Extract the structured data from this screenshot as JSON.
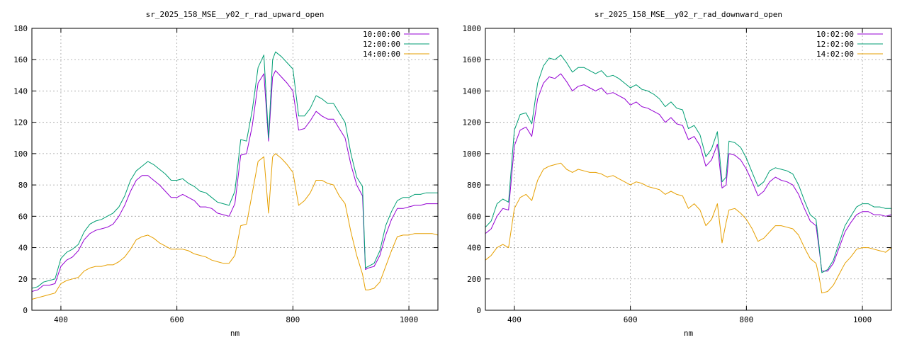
{
  "chart_data": [
    {
      "type": "line",
      "title": "sr_2025_158_MSE__y02_r_rad_upward_open",
      "xlabel": "nm",
      "ylabel": "",
      "xlim": [
        350,
        1050
      ],
      "ylim": [
        0,
        180
      ],
      "xticks": [
        400,
        600,
        800,
        1000
      ],
      "yticks": [
        0,
        20,
        40,
        60,
        80,
        100,
        120,
        140,
        160,
        180
      ],
      "grid": true,
      "legend_position": "top-right",
      "x": [
        350,
        360,
        370,
        380,
        390,
        400,
        410,
        420,
        430,
        440,
        450,
        460,
        470,
        480,
        490,
        500,
        510,
        520,
        530,
        540,
        550,
        560,
        570,
        580,
        590,
        600,
        610,
        620,
        630,
        640,
        650,
        660,
        670,
        680,
        690,
        700,
        710,
        720,
        730,
        740,
        750,
        758,
        765,
        770,
        780,
        790,
        800,
        810,
        820,
        830,
        840,
        850,
        860,
        870,
        880,
        890,
        900,
        910,
        920,
        925,
        930,
        940,
        950,
        960,
        970,
        980,
        990,
        1000,
        1010,
        1020,
        1030,
        1040,
        1050
      ],
      "series": [
        {
          "name": "10:00:00",
          "color": "#9400d3",
          "values": [
            12,
            13,
            16,
            16,
            17,
            28,
            32,
            34,
            38,
            45,
            49,
            51,
            52,
            53,
            55,
            60,
            67,
            76,
            83,
            86,
            86,
            83,
            80,
            76,
            72,
            72,
            74,
            72,
            70,
            66,
            66,
            65,
            62,
            61,
            60,
            68,
            99,
            100,
            118,
            145,
            151,
            108,
            149,
            153,
            149,
            145,
            140,
            115,
            116,
            121,
            127,
            124,
            122,
            122,
            116,
            110,
            93,
            80,
            73,
            26,
            27,
            28,
            35,
            48,
            58,
            65,
            65,
            66,
            67,
            67,
            68,
            68,
            68
          ]
        },
        {
          "name": "12:00:00",
          "color": "#009e73",
          "values": [
            14,
            15,
            18,
            19,
            20,
            33,
            37,
            39,
            42,
            50,
            55,
            57,
            58,
            60,
            62,
            66,
            73,
            83,
            89,
            92,
            95,
            93,
            90,
            87,
            83,
            83,
            84,
            81,
            79,
            76,
            75,
            72,
            69,
            68,
            67,
            76,
            109,
            108,
            128,
            155,
            163,
            110,
            160,
            165,
            162,
            158,
            154,
            124,
            124,
            129,
            137,
            135,
            132,
            132,
            126,
            120,
            100,
            85,
            79,
            27,
            28,
            30,
            38,
            54,
            63,
            70,
            72,
            72,
            74,
            74,
            75,
            75,
            75
          ]
        },
        {
          "name": "14:00:00",
          "color": "#e69f00",
          "values": [
            7,
            8,
            9,
            10,
            11,
            17,
            19,
            20,
            21,
            25,
            27,
            28,
            28,
            29,
            29,
            31,
            34,
            39,
            45,
            47,
            48,
            46,
            43,
            41,
            39,
            39,
            39,
            38,
            36,
            35,
            34,
            32,
            31,
            30,
            30,
            35,
            54,
            55,
            75,
            95,
            98,
            62,
            98,
            100,
            97,
            93,
            88,
            67,
            70,
            75,
            83,
            83,
            81,
            80,
            73,
            68,
            50,
            35,
            23,
            13,
            13,
            14,
            18,
            28,
            38,
            47,
            48,
            48,
            49,
            49,
            49,
            49,
            48
          ]
        }
      ]
    },
    {
      "type": "line",
      "title": "sr_2025_158_MSE__y02_r_rad_downward_open",
      "xlabel": "nm",
      "ylabel": "",
      "xlim": [
        350,
        1050
      ],
      "ylim": [
        0,
        1800
      ],
      "xticks": [
        400,
        600,
        800,
        1000
      ],
      "yticks": [
        0,
        200,
        400,
        600,
        800,
        1000,
        1200,
        1400,
        1600,
        1800
      ],
      "grid": true,
      "legend_position": "top-right",
      "x": [
        350,
        360,
        370,
        380,
        390,
        400,
        410,
        420,
        430,
        440,
        450,
        460,
        470,
        480,
        490,
        500,
        510,
        520,
        530,
        540,
        550,
        560,
        570,
        580,
        590,
        600,
        610,
        620,
        630,
        640,
        650,
        660,
        670,
        680,
        690,
        700,
        710,
        720,
        730,
        740,
        750,
        758,
        765,
        770,
        780,
        790,
        800,
        810,
        820,
        830,
        840,
        850,
        860,
        870,
        880,
        890,
        900,
        910,
        920,
        925,
        930,
        940,
        950,
        960,
        970,
        980,
        990,
        1000,
        1010,
        1020,
        1030,
        1040,
        1050
      ],
      "series": [
        {
          "name": "10:02:00",
          "color": "#9400d3",
          "values": [
            490,
            520,
            600,
            650,
            640,
            1050,
            1150,
            1170,
            1110,
            1350,
            1450,
            1490,
            1480,
            1510,
            1460,
            1400,
            1430,
            1440,
            1420,
            1400,
            1420,
            1380,
            1390,
            1370,
            1350,
            1310,
            1330,
            1300,
            1290,
            1270,
            1250,
            1200,
            1230,
            1190,
            1180,
            1090,
            1110,
            1050,
            920,
            960,
            1060,
            780,
            800,
            1000,
            990,
            960,
            900,
            820,
            730,
            760,
            820,
            850,
            830,
            820,
            800,
            740,
            650,
            570,
            540,
            400,
            250,
            250,
            300,
            400,
            500,
            560,
            610,
            630,
            630,
            610,
            610,
            600,
            610
          ]
        },
        {
          "name": "12:02:00",
          "color": "#009e73",
          "values": [
            530,
            570,
            680,
            710,
            690,
            1150,
            1250,
            1260,
            1190,
            1450,
            1560,
            1610,
            1600,
            1630,
            1580,
            1520,
            1550,
            1550,
            1530,
            1510,
            1530,
            1490,
            1500,
            1480,
            1450,
            1420,
            1440,
            1410,
            1400,
            1380,
            1350,
            1300,
            1330,
            1290,
            1280,
            1160,
            1180,
            1120,
            980,
            1030,
            1140,
            820,
            850,
            1080,
            1070,
            1040,
            970,
            880,
            790,
            820,
            890,
            910,
            900,
            890,
            870,
            800,
            700,
            610,
            580,
            420,
            240,
            260,
            320,
            430,
            540,
            600,
            660,
            680,
            680,
            660,
            660,
            650,
            650
          ]
        },
        {
          "name": "14:02:00",
          "color": "#e69f00",
          "values": [
            320,
            350,
            400,
            420,
            400,
            650,
            720,
            740,
            700,
            830,
            900,
            920,
            930,
            940,
            900,
            880,
            900,
            890,
            880,
            880,
            870,
            850,
            860,
            840,
            820,
            800,
            820,
            810,
            790,
            780,
            770,
            740,
            760,
            740,
            730,
            650,
            680,
            640,
            540,
            580,
            680,
            430,
            560,
            640,
            650,
            620,
            580,
            520,
            440,
            460,
            500,
            540,
            540,
            530,
            520,
            480,
            400,
            330,
            300,
            220,
            110,
            120,
            160,
            230,
            300,
            340,
            390,
            400,
            400,
            390,
            380,
            370,
            400
          ]
        }
      ]
    }
  ]
}
